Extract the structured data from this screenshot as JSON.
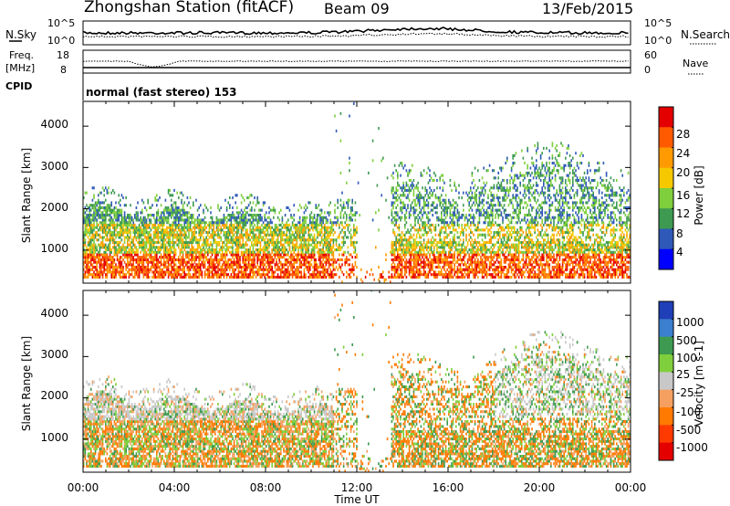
{
  "header": {
    "title": "Zhongshan Station (fitACF)",
    "beam": "Beam 09",
    "date": "13/Feb/2015"
  },
  "noise_panel": {
    "left_label": "N.Sky",
    "right_label": "N.Search",
    "ytick_top": "10^5",
    "ytick_bottom": "10^0",
    "ytick_top_right": "10^5",
    "ytick_bottom_right": "10^0"
  },
  "freq_panel": {
    "label_line1": "Freq.",
    "label_line2": "[MHz]",
    "ytick_top": "18",
    "ytick_bottom": "8",
    "right_label": "Nave",
    "right_tick_top": "60",
    "right_tick_bottom": "0"
  },
  "cpid": {
    "label": "CPID",
    "mode": "normal (fast stereo) 153"
  },
  "power_colorbar": {
    "title": "Power [dB]",
    "ticks": [
      "28",
      "24",
      "20",
      "16",
      "12",
      "8",
      "4"
    ],
    "colors": [
      "#e40000",
      "#ff5a00",
      "#ff9a00",
      "#f5c800",
      "#7fcf3c",
      "#3d9a50",
      "#2e59b8",
      "#0000ff"
    ]
  },
  "velocity_colorbar": {
    "title": "Velocity [m s-1]",
    "ticks": [
      "1000",
      "500",
      "100",
      "25",
      "-25",
      "-100",
      "-500",
      "-1000"
    ],
    "colors": [
      "#1f3fb8",
      "#3b7fcf",
      "#3d9a50",
      "#7fcf3c",
      "#c8c8c8",
      "#f5a060",
      "#ff7a00",
      "#ff3a00",
      "#e40000"
    ]
  },
  "chart_data": [
    {
      "type": "heatmap",
      "name": "power",
      "ylabel": "Slant Range [km]",
      "yticks": [
        "4000",
        "3000",
        "2000",
        "1000"
      ],
      "ylim": [
        200,
        4600
      ],
      "xlim": [
        "00:00",
        "24:00"
      ],
      "colorbar_label": "Power [dB]",
      "description_bands": [
        {
          "x": [
            0,
            11
          ],
          "y": [
            300,
            2300
          ]
        },
        {
          "x": [
            13.5,
            24
          ],
          "y": [
            300,
            3100
          ]
        }
      ]
    },
    {
      "type": "heatmap",
      "name": "velocity",
      "ylabel": "Slant Range [km]",
      "yticks": [
        "4000",
        "3000",
        "2000",
        "1000"
      ],
      "ylim": [
        200,
        4600
      ],
      "xlim": [
        "00:00",
        "24:00"
      ],
      "xlabel": "Time UT",
      "xticks": [
        "00:00",
        "04:00",
        "08:00",
        "12:00",
        "16:00",
        "20:00",
        "00:00"
      ],
      "colorbar_label": "Velocity [m s-1]"
    }
  ]
}
